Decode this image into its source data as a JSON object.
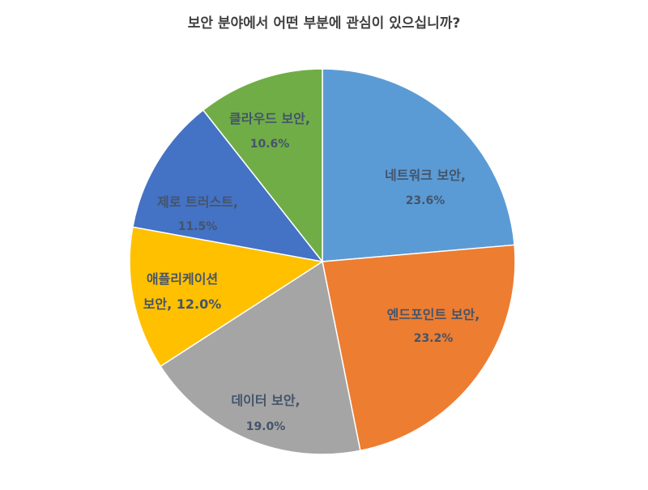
{
  "chart_data": {
    "type": "pie",
    "title": "보안 분야에서 어떤 부분에 관심이 있으십니까?",
    "slices": [
      {
        "label": "네트워크 보안,",
        "value": 23.6,
        "value_label": "23.6%",
        "color": "#5b9bd5"
      },
      {
        "label": "엔드포인트 보안,",
        "value": 23.2,
        "value_label": "23.2%",
        "color": "#ed7d31"
      },
      {
        "label": "데이터 보안,",
        "value": 19.0,
        "value_label": "19.0%",
        "color": "#a5a5a5"
      },
      {
        "label": "애플리케이션 보안, 12.0%",
        "value": 12.0,
        "value_label": "",
        "color": "#ffc000"
      },
      {
        "label": "제로 트러스트,",
        "value": 11.5,
        "value_label": "11.5%",
        "color": "#4472c4"
      },
      {
        "label": "클라우드 보안,",
        "value": 10.6,
        "value_label": "10.6%",
        "color": "#70ad47"
      }
    ],
    "start": "12 o'clock",
    "direction": "clockwise",
    "legend": "none"
  }
}
